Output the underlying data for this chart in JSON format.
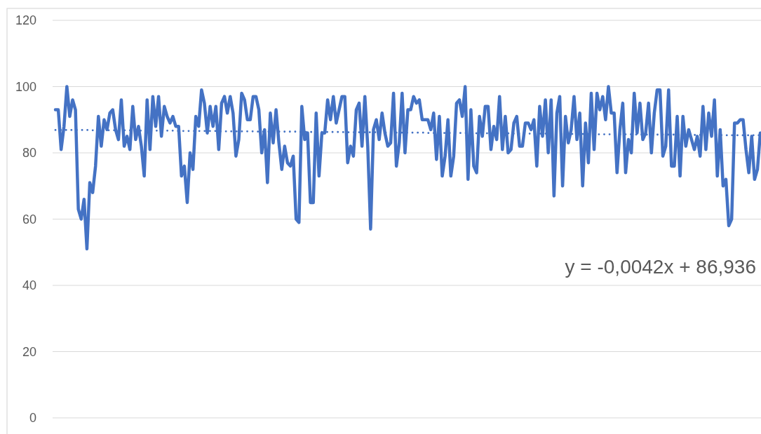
{
  "chart_data": {
    "type": "line",
    "categories": [
      null,
      null,
      null,
      null,
      null,
      null,
      null,
      null,
      null,
      null,
      null,
      null,
      null,
      null,
      null,
      null,
      null,
      null,
      null,
      null,
      null,
      null,
      null,
      null,
      null,
      null,
      null,
      null,
      null,
      null,
      null,
      null,
      null,
      null,
      null,
      null,
      null,
      null,
      null,
      null,
      null,
      null,
      null,
      null,
      null,
      null,
      null,
      null,
      null,
      null,
      null,
      null,
      null,
      null,
      null,
      null,
      null,
      null,
      null,
      null,
      null,
      null,
      null,
      null,
      null,
      null,
      null,
      null,
      null,
      null,
      null,
      null,
      null,
      null,
      null,
      null,
      null,
      null,
      null,
      null,
      null,
      null,
      null,
      null,
      null,
      null,
      null,
      null,
      null,
      null,
      null,
      null,
      null,
      null,
      null,
      null,
      null,
      null,
      null,
      null,
      null,
      null,
      null,
      null,
      null,
      null,
      null,
      null,
      null,
      null,
      null,
      null,
      null,
      null,
      null,
      null,
      null,
      null,
      null,
      null,
      null,
      null,
      null,
      null,
      null,
      null,
      null,
      null,
      null,
      null,
      null,
      null,
      null,
      null,
      null,
      null,
      null,
      null,
      null,
      null,
      null,
      null,
      null,
      null,
      null,
      null,
      null,
      null,
      null,
      null,
      null,
      null,
      null,
      null,
      null,
      null,
      null,
      null,
      null,
      null,
      null,
      null,
      null,
      null,
      null,
      null,
      null,
      null,
      null,
      null,
      null,
      null,
      null,
      null,
      null,
      null,
      null,
      null,
      null,
      null,
      null,
      null,
      null,
      null,
      null,
      null,
      null,
      null,
      null,
      null,
      null,
      null,
      null,
      null,
      null,
      null,
      null,
      null,
      null,
      null,
      null,
      null,
      null,
      null,
      null,
      null,
      null,
      null,
      null,
      null,
      null,
      null,
      null,
      null,
      null,
      null,
      null,
      null,
      null,
      null,
      null,
      null,
      null,
      null,
      null,
      null,
      null,
      null,
      null,
      null,
      null,
      null,
      null,
      null,
      null,
      null,
      null,
      null,
      null,
      null,
      null,
      null,
      null,
      null,
      null,
      null,
      null
    ],
    "ylim": [
      0,
      120
    ],
    "yticks": [
      0,
      20,
      40,
      60,
      80,
      100,
      120
    ],
    "grid": "y",
    "tick_labels": "y",
    "annotations": [
      "y = -0,0042x + 86,936"
    ],
    "series": [
      {
        "color": "#4472c4",
        "line_style": "solid",
        "values": [
          93,
          93,
          81,
          88,
          100,
          91,
          96,
          93,
          63,
          60,
          66,
          51,
          71,
          68,
          76,
          91,
          82,
          90,
          87,
          92,
          93,
          87,
          84,
          96,
          82,
          85,
          81,
          94,
          84,
          88,
          82,
          73,
          96,
          81,
          97,
          88,
          97,
          85,
          94,
          91,
          89,
          91,
          88,
          88,
          73,
          76,
          65,
          80,
          75,
          91,
          88,
          99,
          95,
          86,
          94,
          88,
          94,
          81,
          95,
          97,
          92,
          97,
          92,
          79,
          84,
          98,
          96,
          90,
          90,
          97,
          97,
          93,
          80,
          87,
          71,
          92,
          83,
          93,
          83,
          75,
          82,
          77,
          76,
          79,
          60,
          59,
          94,
          84,
          86,
          65,
          65,
          92,
          73,
          86,
          86,
          96,
          90,
          97,
          89,
          93,
          97,
          97,
          77,
          82,
          79,
          93,
          95,
          82,
          97,
          82,
          57,
          87,
          90,
          84,
          92,
          86,
          82,
          83,
          98,
          76,
          83,
          98,
          80,
          93,
          93,
          97,
          95,
          96,
          90,
          90,
          90,
          87,
          92,
          78,
          91,
          73,
          79,
          90,
          73,
          79,
          95,
          96,
          91,
          100,
          72,
          93,
          76,
          74,
          91,
          85,
          94,
          94,
          81,
          88,
          84,
          97,
          81,
          91,
          80,
          81,
          89,
          91,
          82,
          82,
          89,
          89,
          87,
          90,
          76,
          94,
          85,
          96,
          80,
          96,
          67,
          92,
          97,
          70,
          91,
          83,
          87,
          97,
          84,
          92,
          70,
          89,
          77,
          98,
          81,
          98,
          93,
          97,
          90,
          100,
          92,
          92,
          74,
          87,
          95,
          74,
          84,
          80,
          98,
          86,
          95,
          84,
          86,
          95,
          80,
          92,
          99,
          99,
          79,
          82,
          99,
          76,
          76,
          91,
          73,
          91,
          82,
          87,
          84,
          81,
          85,
          79,
          94,
          81,
          92,
          85,
          96,
          73,
          87,
          70,
          72,
          58,
          60,
          89,
          89,
          90,
          90,
          81,
          74,
          85,
          72,
          75,
          86
        ]
      },
      {
        "color": "#4472c4",
        "line_style": "dotted",
        "values": [
          86.9,
          86.9,
          86.9,
          86.9,
          86.9,
          86.9,
          86.9,
          86.9,
          86.9,
          86.9,
          86.9,
          86.9,
          86.9,
          86.8,
          86.8,
          86.8,
          86.8,
          86.8,
          86.8,
          86.8,
          86.8,
          86.8,
          86.8,
          86.8,
          86.8,
          86.8,
          86.8,
          86.7,
          86.7,
          86.7,
          86.7,
          86.7,
          86.7,
          86.7,
          86.7,
          86.7,
          86.7,
          86.7,
          86.7,
          86.7,
          86.7,
          86.7,
          86.6,
          86.6,
          86.6,
          86.6,
          86.6,
          86.6,
          86.6,
          86.6,
          86.6,
          86.6,
          86.6,
          86.6,
          86.6,
          86.6,
          86.6,
          86.5,
          86.5,
          86.5,
          86.5,
          86.5,
          86.5,
          86.5,
          86.5,
          86.5,
          86.5,
          86.5,
          86.5,
          86.5,
          86.5,
          86.4,
          86.4,
          86.4,
          86.4,
          86.4,
          86.4,
          86.4,
          86.4,
          86.4,
          86.4,
          86.4,
          86.4,
          86.4,
          86.4,
          86.4,
          86.3,
          86.3,
          86.3,
          86.3,
          86.3,
          86.3,
          86.3,
          86.3,
          86.3,
          86.3,
          86.3,
          86.3,
          86.3,
          86.3,
          86.3,
          86.2,
          86.2,
          86.2,
          86.2,
          86.2,
          86.2,
          86.2,
          86.2,
          86.2,
          86.2,
          86.2,
          86.2,
          86.2,
          86.2,
          86.1,
          86.1,
          86.1,
          86.1,
          86.1,
          86.1,
          86.1,
          86.1,
          86.1,
          86.1,
          86.1,
          86.1,
          86.1,
          86.1,
          86.1,
          86,
          86,
          86,
          86,
          86,
          86,
          86,
          86,
          86,
          86,
          86,
          86,
          86,
          86,
          86,
          85.9,
          85.9,
          85.9,
          85.9,
          85.9,
          85.9,
          85.9,
          85.9,
          85.9,
          85.9,
          85.9,
          85.9,
          85.9,
          85.9,
          85.8,
          85.8,
          85.8,
          85.8,
          85.8,
          85.8,
          85.8,
          85.8,
          85.8,
          85.8,
          85.8,
          85.8,
          85.8,
          85.8,
          85.8,
          85.7,
          85.7,
          85.7,
          85.7,
          85.7,
          85.7,
          85.7,
          85.7,
          85.7,
          85.7,
          85.7,
          85.7,
          85.7,
          85.7,
          85.7,
          85.6,
          85.6,
          85.6,
          85.6,
          85.6,
          85.6,
          85.6,
          85.6,
          85.6,
          85.6,
          85.6,
          85.6,
          85.6,
          85.6,
          85.5,
          85.5,
          85.5,
          85.5,
          85.5,
          85.5,
          85.5,
          85.5,
          85.5,
          85.5,
          85.5,
          85.5,
          85.5,
          85.5,
          85.5,
          85.4,
          85.4,
          85.4,
          85.4,
          85.4,
          85.4,
          85.4,
          85.4,
          85.4,
          85.4,
          85.4,
          85.4,
          85.4,
          85.4,
          85.4,
          85.3,
          85.3,
          85.3,
          85.3,
          85.3,
          85.3,
          85.3,
          85.3,
          85.3,
          85.3,
          85.3,
          85.3,
          85.3,
          85.3
        ]
      }
    ]
  }
}
